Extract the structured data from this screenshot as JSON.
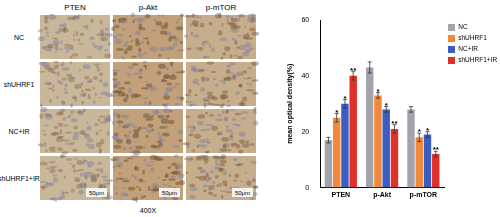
{
  "image_panels": {
    "column_labels": [
      "PTEN",
      "p-Akt",
      "p-mTOR"
    ],
    "row_labels": [
      "NC",
      "shUHRF1",
      "NC+IR",
      "shUHRF1+IR"
    ],
    "scale_bar": "50μm",
    "magnification": "400X"
  },
  "chart_data": {
    "type": "bar",
    "categories": [
      "PTEN",
      "p-Akt",
      "p-mTOR"
    ],
    "y_label": "mean optical density(%)",
    "ylim": [
      0,
      60
    ],
    "yticks": [
      0,
      20,
      40,
      60
    ],
    "grid": false,
    "legend": "right",
    "series": [
      {
        "name": "NC",
        "color": "#a3a3ab",
        "values": [
          17,
          43,
          28
        ],
        "errors": [
          1,
          2,
          1
        ],
        "significance": [
          null,
          null,
          null
        ]
      },
      {
        "name": "shUHRF1",
        "color": "#f08a3a",
        "values": [
          25,
          33,
          18
        ],
        "errors": [
          1.5,
          1,
          1.5
        ],
        "significance": [
          "*",
          "*",
          "*"
        ]
      },
      {
        "name": "NC+IR",
        "color": "#3b5cc0",
        "values": [
          30,
          28,
          19
        ],
        "errors": [
          1.5,
          1,
          1
        ],
        "significance": [
          "*",
          "*",
          "*"
        ]
      },
      {
        "name": "shUHRF1+IR",
        "color": "#e0302a",
        "values": [
          40,
          21,
          12
        ],
        "errors": [
          1.5,
          1.5,
          1
        ],
        "significance": [
          "**",
          "**",
          "**"
        ]
      }
    ]
  }
}
